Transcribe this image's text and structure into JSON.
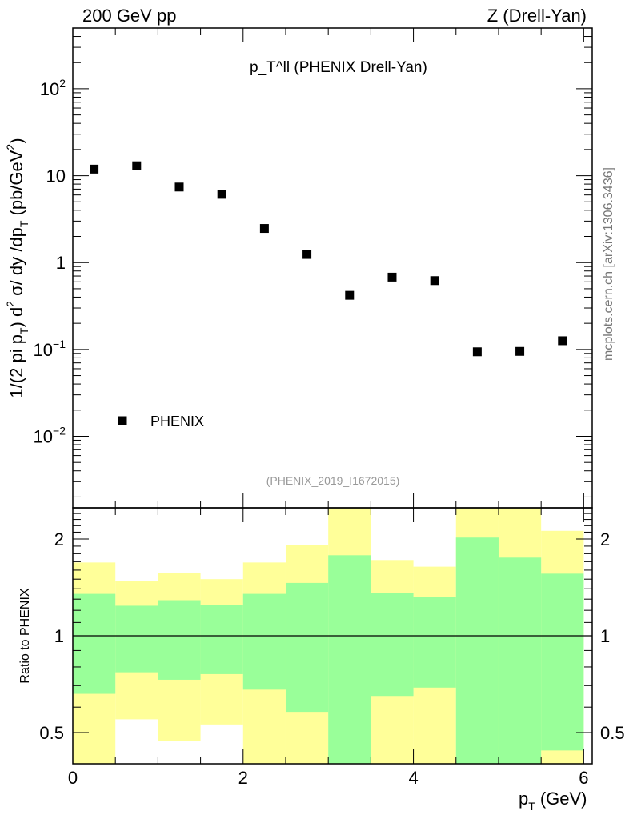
{
  "chart_data": [
    {
      "type": "scatter",
      "title": "p_T^ll (PHENIX Drell-Yan)",
      "title_main": "p",
      "title_sub": "T",
      "title_sup": "ll",
      "title_rest": "(PHENIX Drell-Yan)",
      "top_left_label": "200 GeV pp",
      "top_right_label": "Z (Drell-Yan)",
      "ylabel": "1/(2 pi p_T) d^2 σ/ dy /dp_T (pb/GeV^2)",
      "ylabel_parts": [
        "1/(2 pi p",
        "T",
        ") d",
        "2",
        " σ/ dy /dp",
        "T",
        " (pb/GeV",
        "2",
        ")"
      ],
      "yscale": "log",
      "ylim": [
        0.0015,
        500
      ],
      "xlim": [
        0,
        6.1
      ],
      "ytick_labels": [
        {
          "v": 100,
          "base": "10",
          "exp": "2"
        },
        {
          "v": 10,
          "base": "10",
          "exp": ""
        },
        {
          "v": 1,
          "base": "1",
          "exp": ""
        },
        {
          "v": 0.1,
          "base": "10",
          "exp": "−1"
        },
        {
          "v": 0.01,
          "base": "10",
          "exp": "−2"
        }
      ],
      "legend": {
        "entries": [
          "PHENIX"
        ],
        "placement": "bottom-left"
      },
      "reference": "(PHENIX_2019_I1672015)",
      "series": [
        {
          "name": "PHENIX",
          "x": [
            0.25,
            0.75,
            1.25,
            1.75,
            2.25,
            2.75,
            3.25,
            3.75,
            4.25,
            4.75,
            5.25,
            5.75
          ],
          "values": [
            11.9,
            13.0,
            7.4,
            6.1,
            2.47,
            1.24,
            0.42,
            0.68,
            0.62,
            0.094,
            0.095,
            0.126
          ]
        }
      ]
    },
    {
      "type": "area",
      "ylabel": "Ratio to PHENIX",
      "xlabel_main": "p",
      "xlabel_sub": "T",
      "xlabel_rest": "(GeV)",
      "yscale": "log",
      "ylim": [
        0.4,
        2.5
      ],
      "xlim": [
        0,
        6.1
      ],
      "xtick_labels": [
        "0",
        "2",
        "4",
        "6"
      ],
      "ytick_labels": [
        "0.5",
        "1",
        "2"
      ],
      "bin_edges": [
        0,
        0.5,
        1,
        1.5,
        2,
        2.5,
        3,
        3.5,
        4,
        4.5,
        5,
        5.5,
        6
      ],
      "series": [
        {
          "name": "stat band",
          "color": "#99ff99",
          "upper": [
            1.35,
            1.24,
            1.29,
            1.25,
            1.35,
            1.46,
            1.78,
            1.36,
            1.32,
            2.02,
            1.75,
            1.56
          ],
          "lower": [
            0.66,
            0.77,
            0.73,
            0.76,
            0.68,
            0.58,
            0.3,
            0.65,
            0.69,
            0.3,
            0.3,
            0.44
          ]
        },
        {
          "name": "total band",
          "color": "#ffff99",
          "upper": [
            1.69,
            1.48,
            1.57,
            1.5,
            1.69,
            1.92,
            2.8,
            1.72,
            1.64,
            2.8,
            2.8,
            2.12
          ],
          "lower": [
            0.3,
            0.55,
            0.47,
            0.53,
            0.3,
            0.3,
            0.3,
            0.3,
            0.3,
            0.3,
            0.3,
            0.3
          ]
        }
      ]
    }
  ],
  "watermark": "mcplots.cern.ch [arXiv:1306.3436]"
}
